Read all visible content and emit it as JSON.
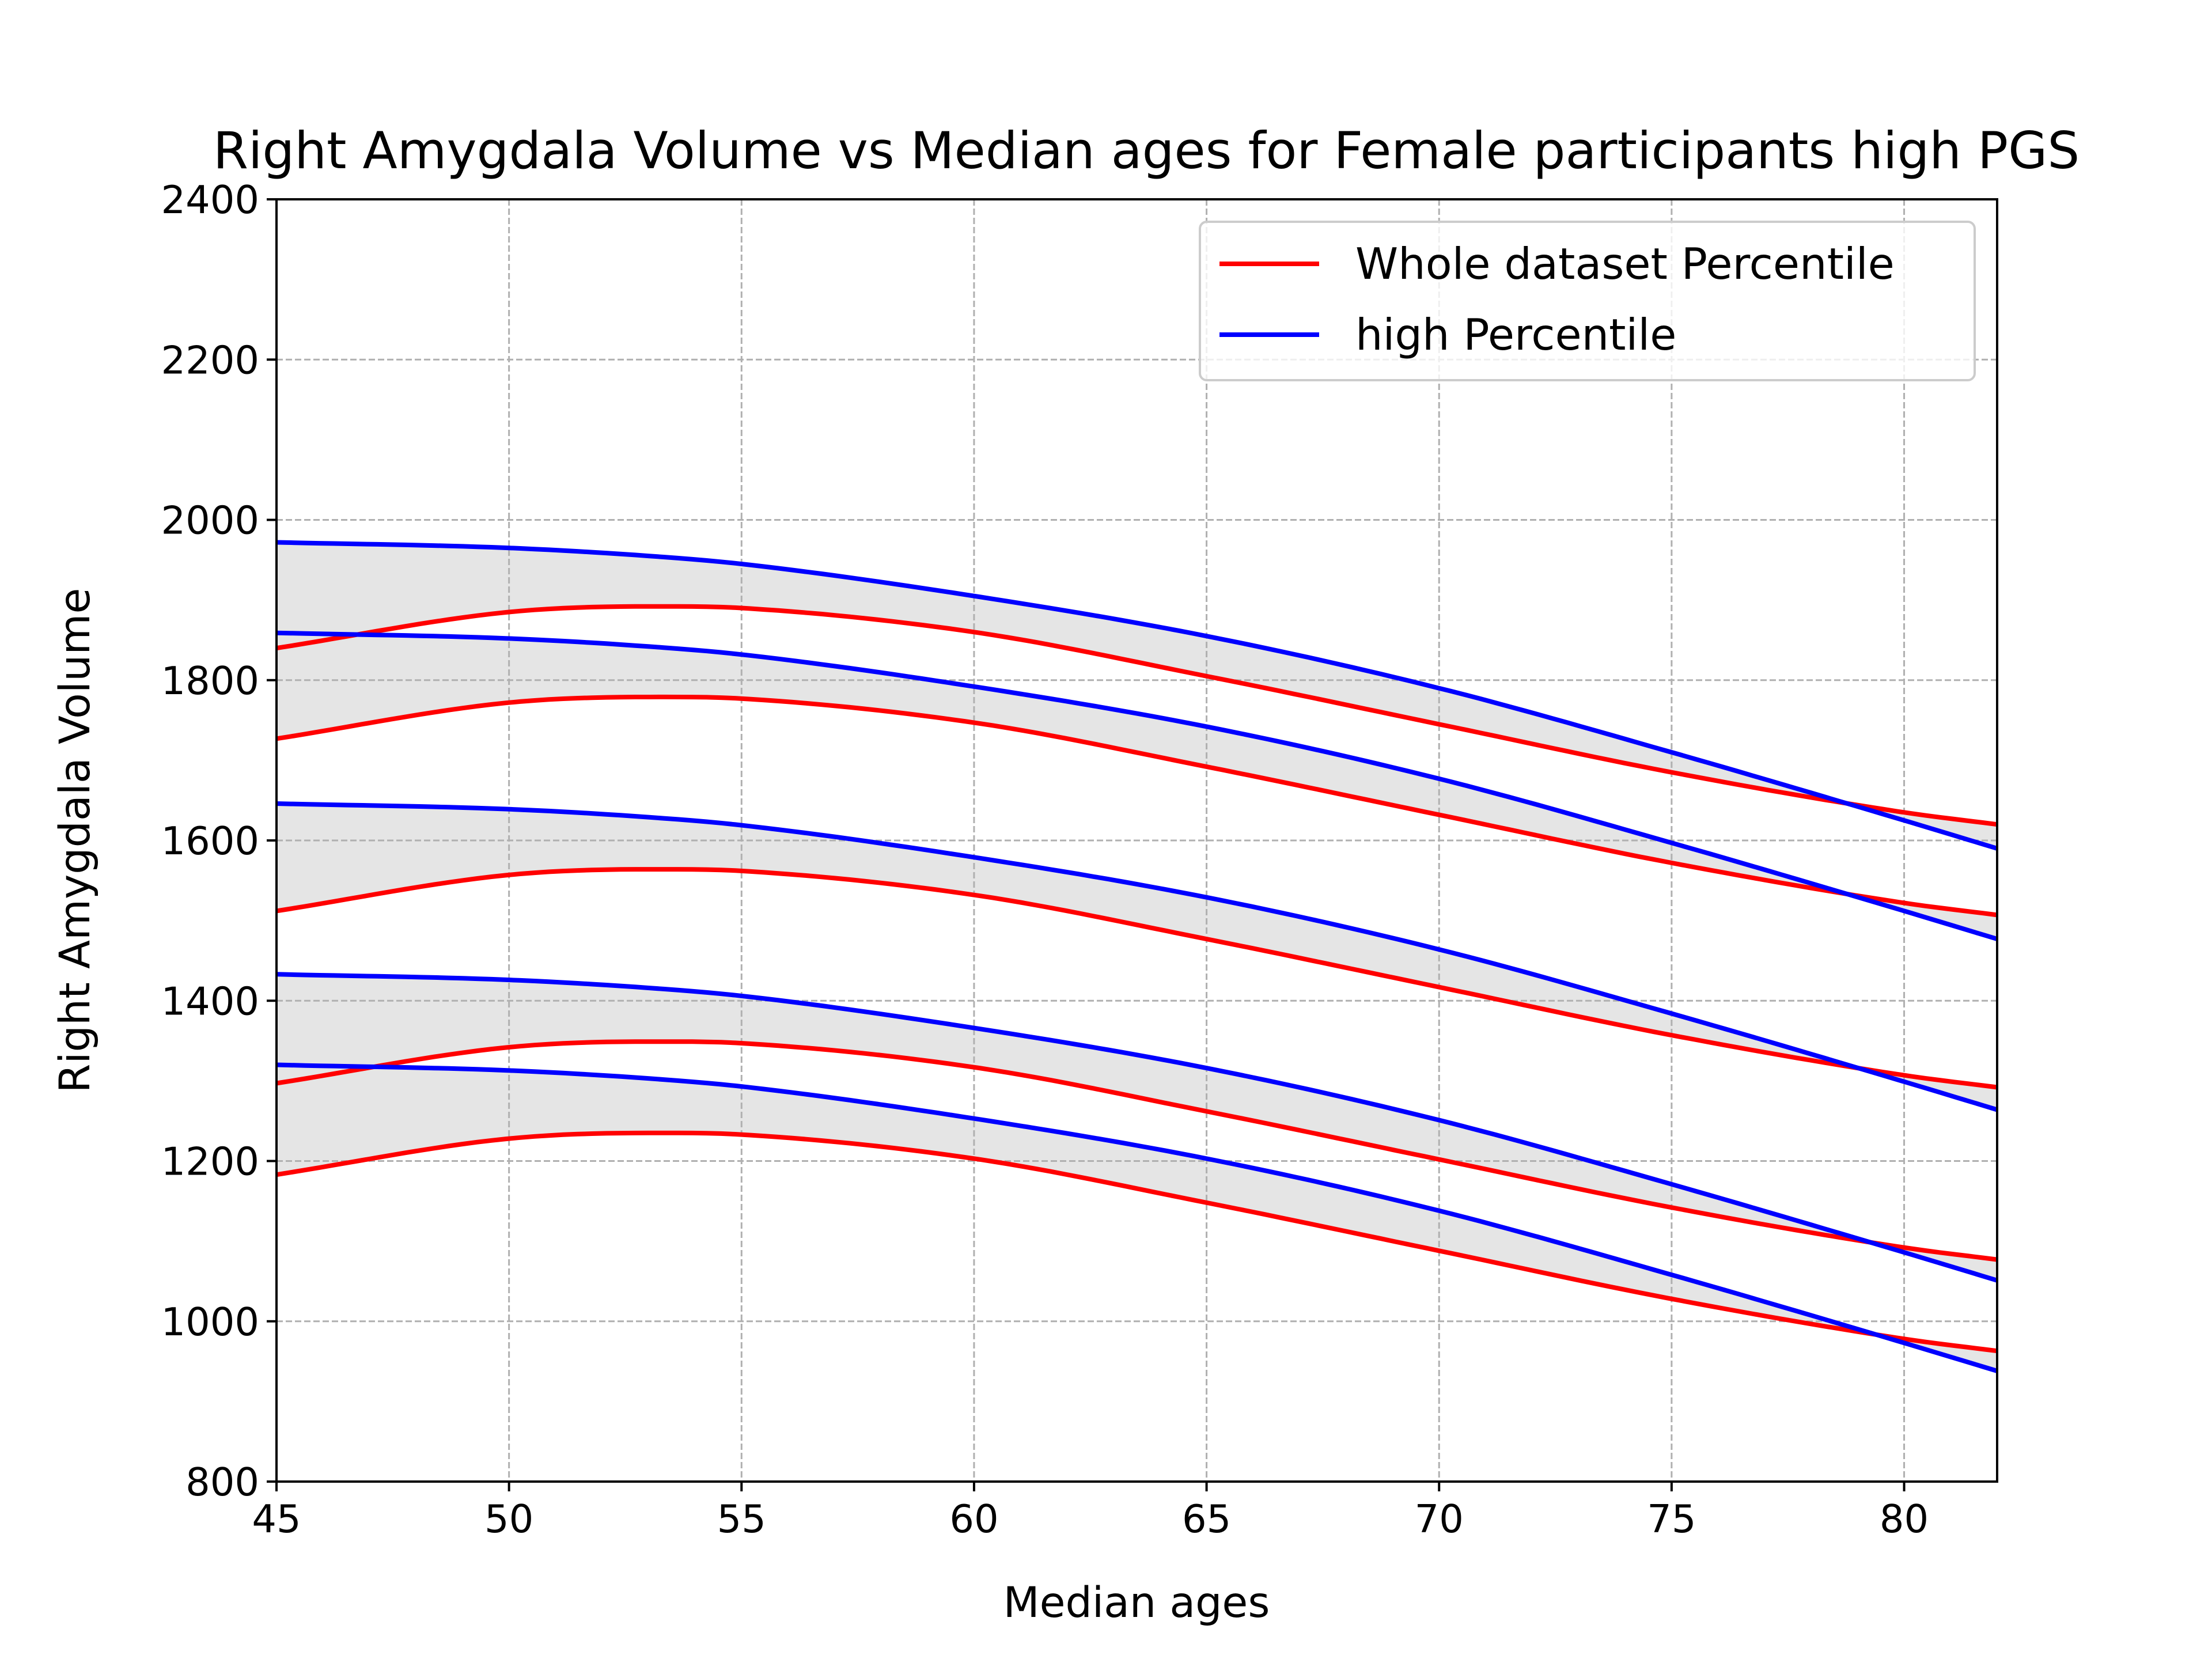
{
  "chart_data": {
    "type": "line",
    "title": "Right Amygdala Volume vs Median ages for Female participants high PGS",
    "xlabel": "Median ages",
    "ylabel": "Right Amygdala Volume",
    "xlim": [
      45,
      82
    ],
    "ylim": [
      800,
      2400
    ],
    "xticks": [
      45,
      50,
      55,
      60,
      65,
      70,
      75,
      80
    ],
    "yticks": [
      800,
      1000,
      1200,
      1400,
      1600,
      1800,
      2000,
      2200,
      2400
    ],
    "grid": true,
    "legend_position": "top-right",
    "colors": {
      "whole": "#ff0000",
      "high": "#0000ff",
      "fill": "#e5e5e5",
      "grid": "#b0b0b0"
    },
    "legend": [
      {
        "label": "Whole dataset Percentile",
        "color": "#ff0000"
      },
      {
        "label": "high Percentile",
        "color": "#0000ff"
      }
    ],
    "x": [
      45,
      50,
      53,
      55,
      60,
      65,
      70,
      75,
      80,
      82
    ],
    "series": [
      {
        "group": "whole",
        "values": [
          1840,
          1885,
          1892,
          1890,
          1860,
          1805,
          1745,
          1685,
          1635,
          1620
        ]
      },
      {
        "group": "whole",
        "values": [
          1727,
          1772,
          1779,
          1777,
          1747,
          1692,
          1632,
          1572,
          1522,
          1507
        ]
      },
      {
        "group": "whole",
        "values": [
          1512,
          1557,
          1564,
          1562,
          1532,
          1477,
          1417,
          1357,
          1307,
          1292
        ]
      },
      {
        "group": "whole",
        "values": [
          1297,
          1342,
          1349,
          1347,
          1317,
          1262,
          1202,
          1142,
          1092,
          1077
        ]
      },
      {
        "group": "whole",
        "values": [
          1183,
          1228,
          1235,
          1233,
          1203,
          1148,
          1088,
          1028,
          978,
          963
        ]
      },
      {
        "group": "high",
        "values": [
          1972,
          1965,
          1955,
          1945,
          1905,
          1855,
          1790,
          1710,
          1625,
          1590
        ]
      },
      {
        "group": "high",
        "values": [
          1859,
          1852,
          1842,
          1832,
          1792,
          1742,
          1677,
          1597,
          1512,
          1477
        ]
      },
      {
        "group": "high",
        "values": [
          1646,
          1639,
          1629,
          1619,
          1579,
          1529,
          1464,
          1384,
          1299,
          1264
        ]
      },
      {
        "group": "high",
        "values": [
          1433,
          1426,
          1416,
          1406,
          1366,
          1316,
          1251,
          1171,
          1086,
          1051
        ]
      },
      {
        "group": "high",
        "values": [
          1320,
          1313,
          1303,
          1293,
          1253,
          1203,
          1138,
          1058,
          973,
          938
        ]
      }
    ],
    "fill_between": [
      [
        0,
        5
      ],
      [
        1,
        6
      ],
      [
        2,
        7
      ],
      [
        3,
        8
      ],
      [
        4,
        9
      ]
    ]
  }
}
